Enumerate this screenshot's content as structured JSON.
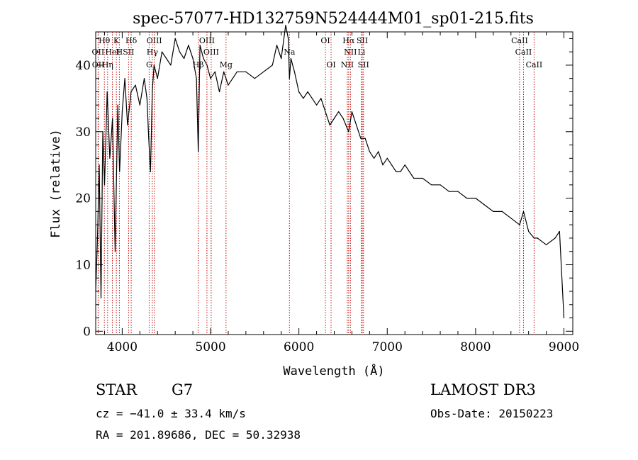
{
  "chart_data": {
    "type": "line",
    "title": "spec-57077-HD132759N524444M01_sp01-215.fits",
    "xlabel": "Wavelength (Å)",
    "ylabel": "Flux (relative)",
    "xlim": [
      3700,
      9100
    ],
    "ylim": [
      -0.5,
      45
    ],
    "x_ticks": [
      4000,
      5000,
      6000,
      7000,
      8000,
      9000
    ],
    "y_ticks": [
      0,
      10,
      20,
      30,
      40
    ],
    "series": [
      {
        "name": "flux",
        "x": [
          3700,
          3720,
          3740,
          3760,
          3780,
          3800,
          3830,
          3860,
          3890,
          3920,
          3950,
          3970,
          4000,
          4030,
          4060,
          4100,
          4150,
          4200,
          4250,
          4280,
          4300,
          4320,
          4340,
          4360,
          4400,
          4450,
          4500,
          4550,
          4600,
          4650,
          4700,
          4750,
          4800,
          4840,
          4861,
          4880,
          4920,
          4960,
          5000,
          5050,
          5100,
          5150,
          5200,
          5250,
          5300,
          5400,
          5500,
          5600,
          5700,
          5750,
          5800,
          5850,
          5880,
          5893,
          5910,
          5950,
          6000,
          6050,
          6100,
          6150,
          6200,
          6250,
          6300,
          6350,
          6400,
          6450,
          6500,
          6563,
          6600,
          6650,
          6700,
          6750,
          6800,
          6850,
          6900,
          6950,
          7000,
          7050,
          7100,
          7150,
          7200,
          7300,
          7400,
          7500,
          7600,
          7700,
          7800,
          7900,
          8000,
          8100,
          8200,
          8300,
          8400,
          8498,
          8542,
          8600,
          8662,
          8700,
          8800,
          8900,
          8950,
          9000
        ],
        "y": [
          6,
          14,
          25,
          5,
          30,
          22,
          36,
          26,
          32,
          12,
          34,
          24,
          33,
          38,
          31,
          36,
          37,
          34,
          38,
          35,
          29,
          24,
          36,
          40,
          38,
          42,
          41,
          40,
          44,
          42,
          41,
          43,
          41,
          38,
          27,
          43,
          41,
          40,
          38,
          39,
          36,
          39,
          37,
          38,
          39,
          39,
          38,
          39,
          40,
          43,
          41,
          46,
          44,
          38,
          41,
          39,
          36,
          35,
          36,
          35,
          34,
          35,
          33,
          31,
          32,
          33,
          32,
          30,
          33,
          31,
          29,
          29,
          27,
          26,
          27,
          25,
          26,
          25,
          24,
          24,
          25,
          23,
          23,
          22,
          22,
          21,
          21,
          20,
          20,
          19,
          18,
          18,
          17,
          16,
          18,
          15,
          14,
          14,
          13,
          14,
          15,
          2
        ]
      }
    ],
    "line_markers": [
      {
        "label": "Hθ",
        "w": 3798,
        "row": 0
      },
      {
        "label": "K",
        "w": 3934,
        "row": 0
      },
      {
        "label": "Hδ",
        "w": 4102,
        "row": 0
      },
      {
        "label": "OIII",
        "w": 4363,
        "row": 0
      },
      {
        "label": "OIII",
        "w": 4959,
        "row": 0
      },
      {
        "label": "OI",
        "w": 6300,
        "row": 0
      },
      {
        "label": "Hα",
        "w": 6563,
        "row": 0
      },
      {
        "label": "SII",
        "w": 6717,
        "row": 0
      },
      {
        "label": "CaII",
        "w": 8498,
        "row": 0
      },
      {
        "label": "OII",
        "w": 3727,
        "row": 1
      },
      {
        "label": "H",
        "w": 3968,
        "row": 1
      },
      {
        "label": "HeI",
        "w": 3889,
        "row": 1
      },
      {
        "label": "SII",
        "w": 4072,
        "row": 1
      },
      {
        "label": "Hγ",
        "w": 4341,
        "row": 1
      },
      {
        "label": "OIII",
        "w": 5007,
        "row": 1
      },
      {
        "label": "Na",
        "w": 5893,
        "row": 1
      },
      {
        "label": "NII",
        "w": 6583,
        "row": 1
      },
      {
        "label": "Li",
        "w": 6708,
        "row": 1
      },
      {
        "label": "CaII",
        "w": 8542,
        "row": 1
      },
      {
        "label": "OII",
        "w": 3729,
        "row": 2
      },
      {
        "label": "Hη",
        "w": 3835,
        "row": 2
      },
      {
        "label": "G",
        "w": 4305,
        "row": 2
      },
      {
        "label": "Hβ",
        "w": 4861,
        "row": 2
      },
      {
        "label": "Mg",
        "w": 5175,
        "row": 2
      },
      {
        "label": "OI",
        "w": 6364,
        "row": 2
      },
      {
        "label": "NII",
        "w": 6548,
        "row": 2
      },
      {
        "label": "SII",
        "w": 6731,
        "row": 2
      },
      {
        "label": "CaII",
        "w": 8662,
        "row": 2
      }
    ]
  },
  "info": {
    "object_class": "STAR",
    "subclass": "G7",
    "survey": "LAMOST DR3",
    "cz": "cz = −41.0 ± 33.4 km/s",
    "obs_date": "Obs-Date: 20150223",
    "coords": "RA = 201.89686, DEC =  50.32938"
  },
  "colors": {
    "spectrum": "#000000",
    "line_marker": "#c00000"
  }
}
